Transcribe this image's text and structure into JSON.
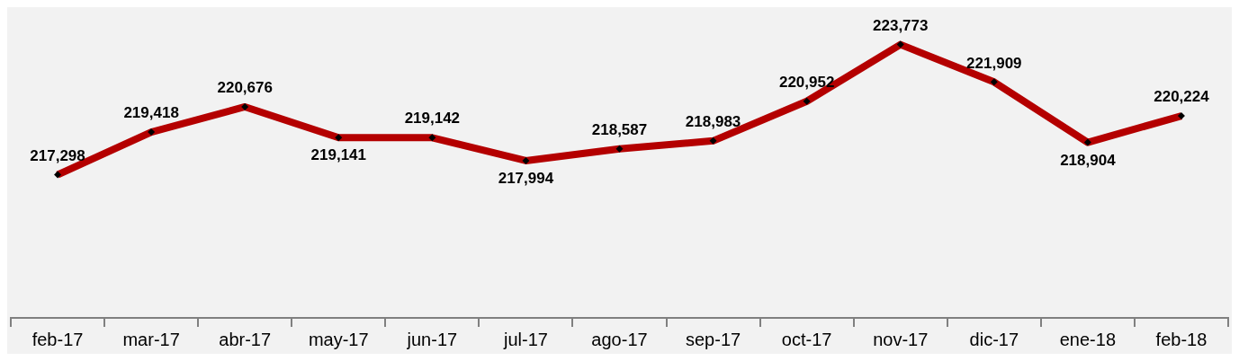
{
  "chart_data": {
    "type": "line",
    "categories": [
      "feb-17",
      "mar-17",
      "abr-17",
      "may-17",
      "jun-17",
      "jul-17",
      "ago-17",
      "sep-17",
      "oct-17",
      "nov-17",
      "dic-17",
      "ene-18",
      "feb-18"
    ],
    "series": [
      {
        "color": "#b40000",
        "values": [
          217298,
          219418,
          220676,
          219141,
          219142,
          217994,
          218587,
          218983,
          220952,
          223773,
          221909,
          218904,
          220224
        ],
        "value_labels": [
          "217,298",
          "219,418",
          "220,676",
          "219,141",
          "219,142",
          "217,994",
          "218,587",
          "218,983",
          "220,952",
          "223,773",
          "221,909",
          "218,904",
          "220,224"
        ]
      }
    ],
    "marker": "diamond",
    "grid": false,
    "legend": false,
    "tick_labels": "x"
  }
}
